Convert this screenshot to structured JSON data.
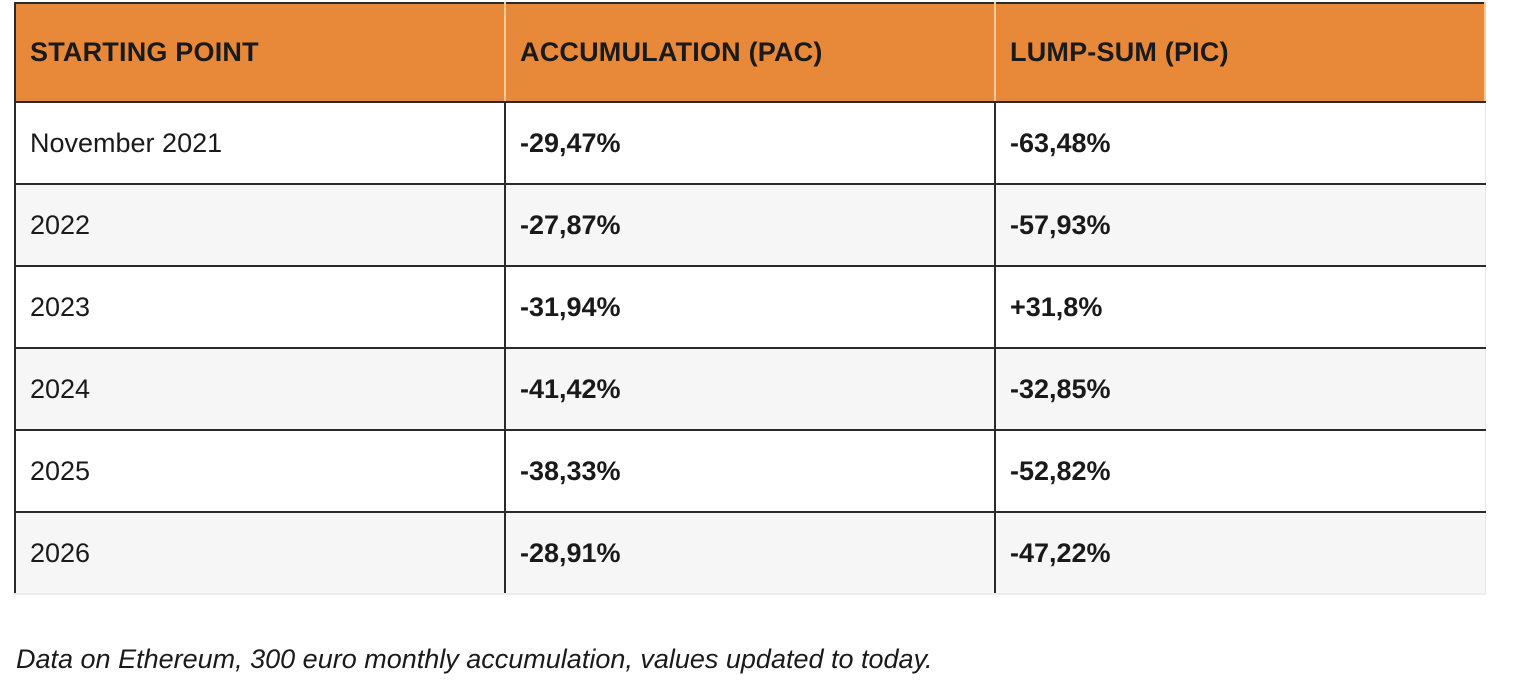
{
  "table": {
    "headers": [
      "STARTING POINT",
      "ACCUMULATION (PAC)",
      "LUMP-SUM (PIC)"
    ],
    "rows": [
      {
        "start": "November 2021",
        "pac": "-29,47%",
        "pic": "-63,48%"
      },
      {
        "start": "2022",
        "pac": "-27,87%",
        "pic": "-57,93%"
      },
      {
        "start": "2023",
        "pac": "-31,94%",
        "pic": "+31,8%"
      },
      {
        "start": "2024",
        "pac": "-41,42%",
        "pic": "-32,85%"
      },
      {
        "start": "2025",
        "pac": "-38,33%",
        "pic": "-52,82%"
      },
      {
        "start": "2026",
        "pac": "-28,91%",
        "pic": "-47,22%"
      }
    ]
  },
  "caption": "Data on Ethereum, 300 euro monthly accumulation, values updated to today.",
  "colors": {
    "header_bg": "#e8893a",
    "row_alt_bg": "#f6f6f6",
    "border": "#2a2a2a"
  }
}
